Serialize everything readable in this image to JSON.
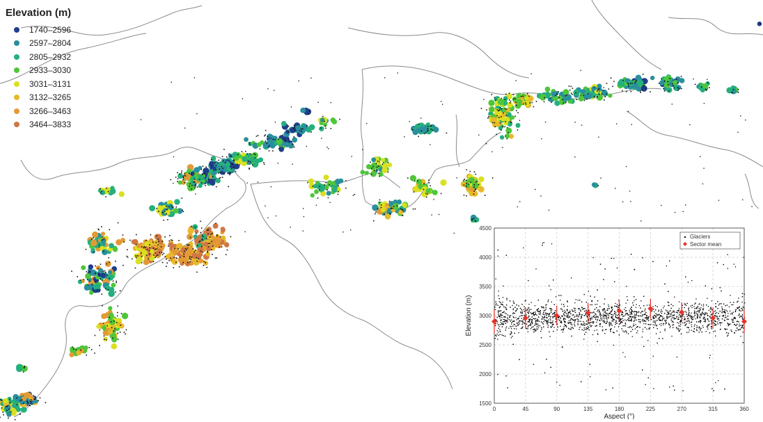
{
  "legend": {
    "title": "Elevation (m)",
    "classes": [
      {
        "label": "1740–2596",
        "color": "#1f3f8a"
      },
      {
        "label": "2597–2804",
        "color": "#2a8f9e"
      },
      {
        "label": "2805–2932",
        "color": "#24b07d"
      },
      {
        "label": "2933–3030",
        "color": "#4fc63a"
      },
      {
        "label": "3031–3131",
        "color": "#d9e021"
      },
      {
        "label": "3132–3265",
        "color": "#e8b92a"
      },
      {
        "label": "3266–3463",
        "color": "#e39a35"
      },
      {
        "label": "3464–3833",
        "color": "#cf7745"
      }
    ]
  },
  "chart_data": {
    "type": "scatter",
    "xlabel": "Aspect (°)",
    "ylabel": "Elevation (m)",
    "xlim": [
      0,
      360
    ],
    "ylim": [
      1500,
      4500
    ],
    "xticks": [
      0,
      45,
      90,
      135,
      180,
      225,
      270,
      315,
      360
    ],
    "yticks": [
      1500,
      2000,
      2500,
      3000,
      3500,
      4000,
      4500
    ],
    "grid": true,
    "legend_position": "top-right",
    "series": [
      {
        "name": "Glaciers",
        "marker": "point",
        "color": "#000000",
        "y_center": 2980,
        "y_spread": 260
      },
      {
        "name": "Sector mean",
        "marker": "diamond",
        "color": "#e8322a",
        "points": [
          {
            "x": 0,
            "y": 2900,
            "err": 200
          },
          {
            "x": 45,
            "y": 2960,
            "err": 180
          },
          {
            "x": 90,
            "y": 3000,
            "err": 170
          },
          {
            "x": 135,
            "y": 3050,
            "err": 170
          },
          {
            "x": 180,
            "y": 3080,
            "err": 190
          },
          {
            "x": 225,
            "y": 3120,
            "err": 170
          },
          {
            "x": 270,
            "y": 3060,
            "err": 170
          },
          {
            "x": 315,
            "y": 2960,
            "err": 180
          },
          {
            "x": 360,
            "y": 2900,
            "err": 200
          }
        ]
      }
    ]
  }
}
